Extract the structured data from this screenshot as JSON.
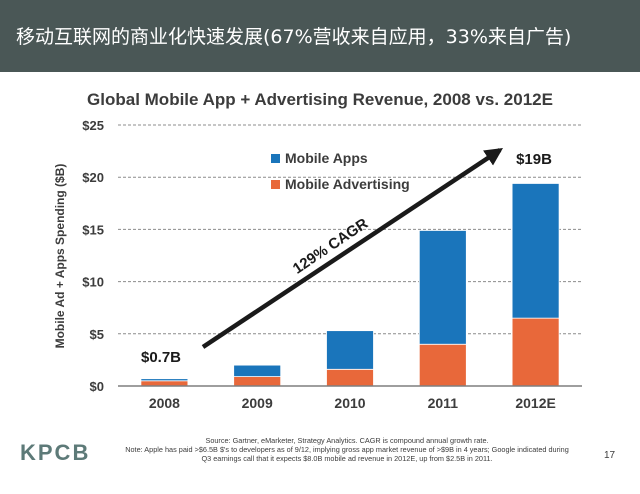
{
  "header": {
    "title": "移动互联网的商业化快速发展(67%营收来自应用，33%来自广告)"
  },
  "chart_data": {
    "type": "bar",
    "stacked": true,
    "title": "Global Mobile App + Advertising Revenue, 2008 vs. 2012E",
    "xlabel": "",
    "ylabel": "Mobile Ad + Apps Spending ($B)",
    "categories": [
      "2008",
      "2009",
      "2010",
      "2011",
      "2012E"
    ],
    "series": [
      {
        "name": "Mobile Advertising",
        "values": [
          0.5,
          0.9,
          1.6,
          4.0,
          6.5
        ],
        "color": "#e8683a"
      },
      {
        "name": "Mobile Apps",
        "values": [
          0.2,
          1.1,
          3.7,
          10.9,
          12.9
        ],
        "color": "#1a75bb"
      }
    ],
    "legend_order": [
      "Mobile Apps",
      "Mobile Advertising"
    ],
    "ylim": [
      0,
      25
    ],
    "yticks": [
      0,
      5,
      10,
      15,
      20,
      25
    ],
    "ytick_labels": [
      "$0",
      "$5",
      "$10",
      "$15",
      "$20",
      "$25"
    ],
    "grid": true,
    "legend_position": "top-center",
    "annotations": {
      "start_label": "$0.7B",
      "end_label": "$19B",
      "cagr_label": "129% CAGR"
    }
  },
  "footer": {
    "logo": "KPCB",
    "source": "Source: Gartner, eMarketer, Strategy Analytics. CAGR is compound annual growth rate.",
    "note": "Note: Apple has paid >$6.5B $'s to developers as of 9/12, implying gross app market revenue of >$9B in 4 years; Google indicated during",
    "note2": "Q3 earnings call that it expects $8.0B mobile ad revenue in 2012E, up from $2.5B in 2011.",
    "page_number": "17"
  }
}
